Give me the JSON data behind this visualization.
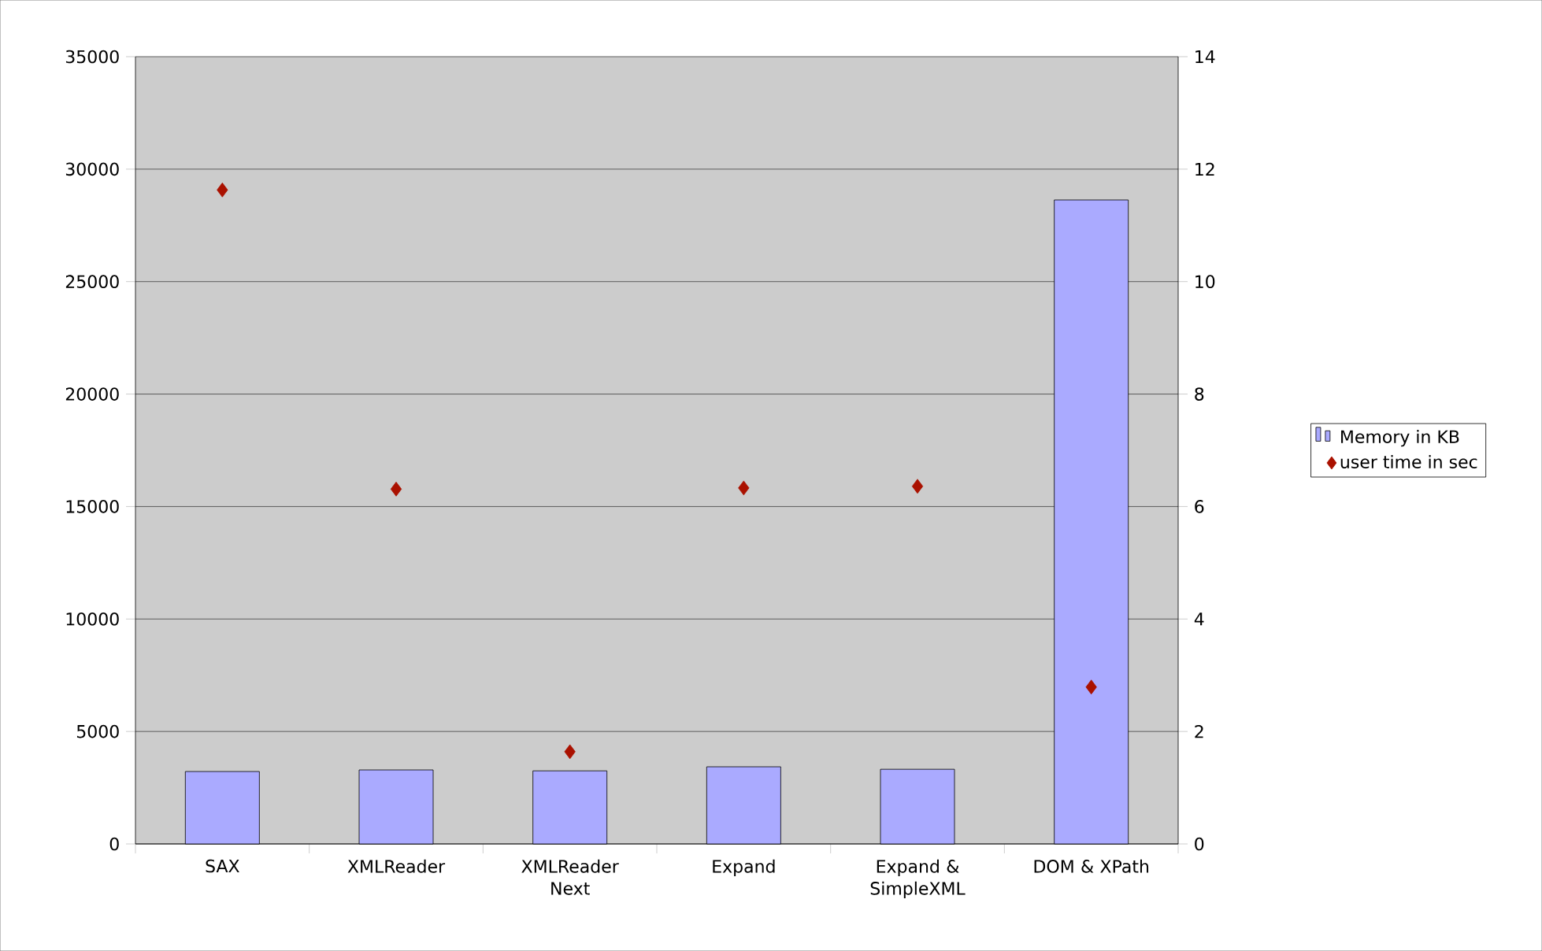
{
  "chart_data": {
    "type": "bar",
    "categories": [
      "SAX",
      "XMLReader",
      "XMLReader Next",
      "Expand",
      "Expand & SimpleXML",
      "DOM & XPath"
    ],
    "series": [
      {
        "name": "Memory in KB",
        "color": "#aaaaff",
        "values": [
          3220,
          3290,
          3250,
          3430,
          3320,
          28630
        ]
      },
      {
        "name": "user time in sec",
        "type": "scatter",
        "axis": "y2",
        "marker": "diamond",
        "color": "#aa1100",
        "values": [
          11.63,
          6.31,
          1.64,
          6.33,
          6.36,
          2.79
        ]
      }
    ],
    "ylim": [
      0,
      35000
    ],
    "yticks": [
      0,
      5000,
      10000,
      15000,
      20000,
      25000,
      30000,
      35000
    ],
    "y2lim": [
      0,
      14
    ],
    "y2ticks": [
      0,
      2,
      4,
      6,
      8,
      10,
      12,
      14
    ],
    "grid": "y",
    "legend": "right"
  }
}
